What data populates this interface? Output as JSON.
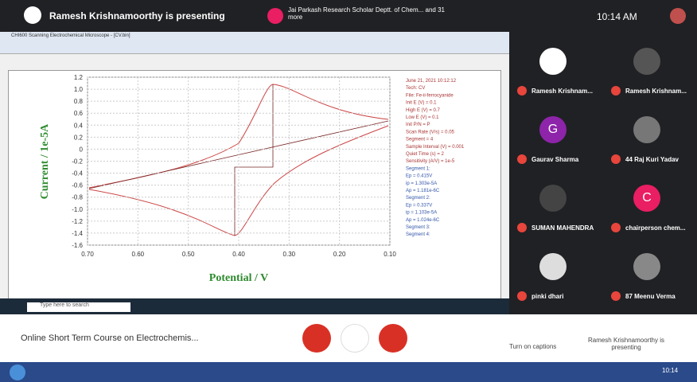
{
  "header": {
    "presenter": "Ramesh Krishnamoorthy is presenting",
    "notification": "Jai Parkash Research Scholar Deptt. of Chem... and 31 more",
    "time": "10:14 AM"
  },
  "shared_screen": {
    "window_title": "CHI600 Scanning Electrochemical Microscope - [CV.bin]",
    "chart": {
      "y_label": "Current / 1e-5A",
      "x_label": "Potential / V",
      "y_ticks": [
        "1.2",
        "1.0",
        "0.8",
        "0.6",
        "0.4",
        "0.2",
        "0",
        "-0.2",
        "-0.4",
        "-0.6",
        "-0.8",
        "-1.0",
        "-1.2",
        "-1.4",
        "-1.6"
      ],
      "x_ticks": [
        "0.70",
        "0.60",
        "0.50",
        "0.40",
        "0.30",
        "0.20",
        "0.10"
      ],
      "info": [
        "June 21, 2021   10:12:12",
        "Tech: CV",
        "File: Fe-ii-ferrocyanide",
        "Init E (V) = 0.1",
        "High E (V) = 0.7",
        "Low E (V) = 0.1",
        "Init P/N = P",
        "Scan Rate (V/s) = 0.05",
        "Segment = 4",
        "Sample Interval (V) = 0.001",
        "Quiet Time (s) = 2",
        "Sensitivity (A/V) = 1e-5",
        "Segment 1:",
        "Ep = 0.415V",
        "ip = 1.303e-5A",
        "Ap = 1.181e-6C",
        "Segment 2:",
        "Ep = 0.337V",
        "ip = 1.103e-5A",
        "Ap = 1.024e-6C",
        "Segment 3:",
        "Segment 4:"
      ]
    },
    "search": "Type here to search"
  },
  "participants": [
    {
      "name": "Ramesh Krishnam...",
      "initial": ""
    },
    {
      "name": "Ramesh Krishnam...",
      "initial": ""
    },
    {
      "name": "Gaurav Sharma",
      "initial": "G"
    },
    {
      "name": "44 Raj Kuri Yadav",
      "initial": ""
    },
    {
      "name": "SUMAN MAHENDRA",
      "initial": ""
    },
    {
      "name": "chairperson chem...",
      "initial": "C"
    },
    {
      "name": "pinki dhari",
      "initial": ""
    },
    {
      "name": "87 Meenu Verma",
      "initial": ""
    }
  ],
  "footer": {
    "meeting": "Online Short Term Course on Electrochemis...",
    "captions": "Turn on captions",
    "presenting": "Ramesh Krishnamoorthy is presenting"
  },
  "taskbar": {
    "time": "10:14"
  }
}
